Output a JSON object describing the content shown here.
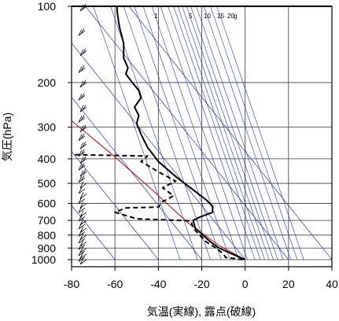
{
  "chart_data": {
    "type": "line",
    "title": "",
    "xlabel": "気温(実線), 露点(破線)",
    "ylabel": "気圧(hPa)",
    "xlim": [
      -80,
      40
    ],
    "ylim": [
      1030,
      100
    ],
    "y_scale": "log",
    "grid": true,
    "x_ticks": [
      -80,
      -60,
      -40,
      -20,
      0,
      20,
      40
    ],
    "y_ticks": [
      100,
      200,
      300,
      400,
      500,
      600,
      700,
      800,
      900,
      1000
    ],
    "mixing_ratio_labels": [
      "1",
      "5",
      "10",
      "15",
      "20",
      "g"
    ],
    "series": [
      {
        "name": "",
        "style": "solid",
        "color": "#000000",
        "points": [
          {
            "t": 0,
            "p": 1000
          },
          {
            "t": -6,
            "p": 950
          },
          {
            "t": -12,
            "p": 900
          },
          {
            "t": -16,
            "p": 850
          },
          {
            "t": -19.5,
            "p": 800
          },
          {
            "t": -23,
            "p": 750
          },
          {
            "t": -24,
            "p": 700
          },
          {
            "t": -21,
            "p": 680
          },
          {
            "t": -15,
            "p": 650
          },
          {
            "t": -15,
            "p": 615
          },
          {
            "t": -18,
            "p": 580
          },
          {
            "t": -24,
            "p": 530
          },
          {
            "t": -32,
            "p": 470
          },
          {
            "t": -40,
            "p": 410
          },
          {
            "t": -45,
            "p": 360
          },
          {
            "t": -48,
            "p": 320
          },
          {
            "t": -50,
            "p": 290
          },
          {
            "t": -49,
            "p": 270
          },
          {
            "t": -51,
            "p": 250
          },
          {
            "t": -48,
            "p": 230
          },
          {
            "t": -49,
            "p": 215
          },
          {
            "t": -52,
            "p": 200
          },
          {
            "t": -55,
            "p": 185
          },
          {
            "t": -54,
            "p": 175
          },
          {
            "t": -56,
            "p": 160
          },
          {
            "t": -56,
            "p": 140
          },
          {
            "t": -58,
            "p": 120
          },
          {
            "t": -59,
            "p": 105
          },
          {
            "t": -59,
            "p": 100
          }
        ]
      },
      {
        "name": "",
        "style": "dashed",
        "color": "#000000",
        "points": [
          {
            "t": -1,
            "p": 1000
          },
          {
            "t": -9,
            "p": 980
          },
          {
            "t": -10,
            "p": 950
          },
          {
            "t": -13,
            "p": 905
          },
          {
            "t": -18,
            "p": 850
          },
          {
            "t": -21,
            "p": 800
          },
          {
            "t": -24,
            "p": 750
          },
          {
            "t": -25,
            "p": 703
          },
          {
            "t": -50,
            "p": 690
          },
          {
            "t": -60,
            "p": 650
          },
          {
            "t": -55,
            "p": 625
          },
          {
            "t": -40,
            "p": 620
          },
          {
            "t": -38,
            "p": 590
          },
          {
            "t": -33,
            "p": 560
          },
          {
            "t": -38,
            "p": 520
          },
          {
            "t": -32,
            "p": 490
          },
          {
            "t": -40,
            "p": 450
          },
          {
            "t": -48,
            "p": 410
          },
          {
            "t": -45,
            "p": 390
          },
          {
            "t": -80,
            "p": 385
          }
        ]
      }
    ],
    "reference_line": {
      "name": "",
      "color": "#cc0000",
      "points": [
        {
          "t": 0,
          "p": 1000
        },
        {
          "t": -12,
          "p": 880
        },
        {
          "t": -26,
          "p": 720
        },
        {
          "t": -44,
          "p": 520
        },
        {
          "t": -62,
          "p": 380
        },
        {
          "t": -80,
          "p": 283
        }
      ]
    },
    "isotherm_t0_values": [
      -180,
      -160,
      -140,
      -120,
      -100,
      -80,
      -60,
      -40,
      -20,
      0,
      20,
      40
    ],
    "isotherm_skew_deg_per_log10": 93.6,
    "mixing_ratio_t1000_values": [
      -30,
      -22,
      -16,
      -11,
      -7,
      -3,
      1,
      4.5,
      7,
      9,
      11,
      13,
      15,
      17.5,
      21,
      24,
      27
    ],
    "colors": {
      "grid": "#3a3a3a",
      "isopleth": "#2233cc",
      "frame": "#000000"
    },
    "wind_barbs_shown": true
  }
}
